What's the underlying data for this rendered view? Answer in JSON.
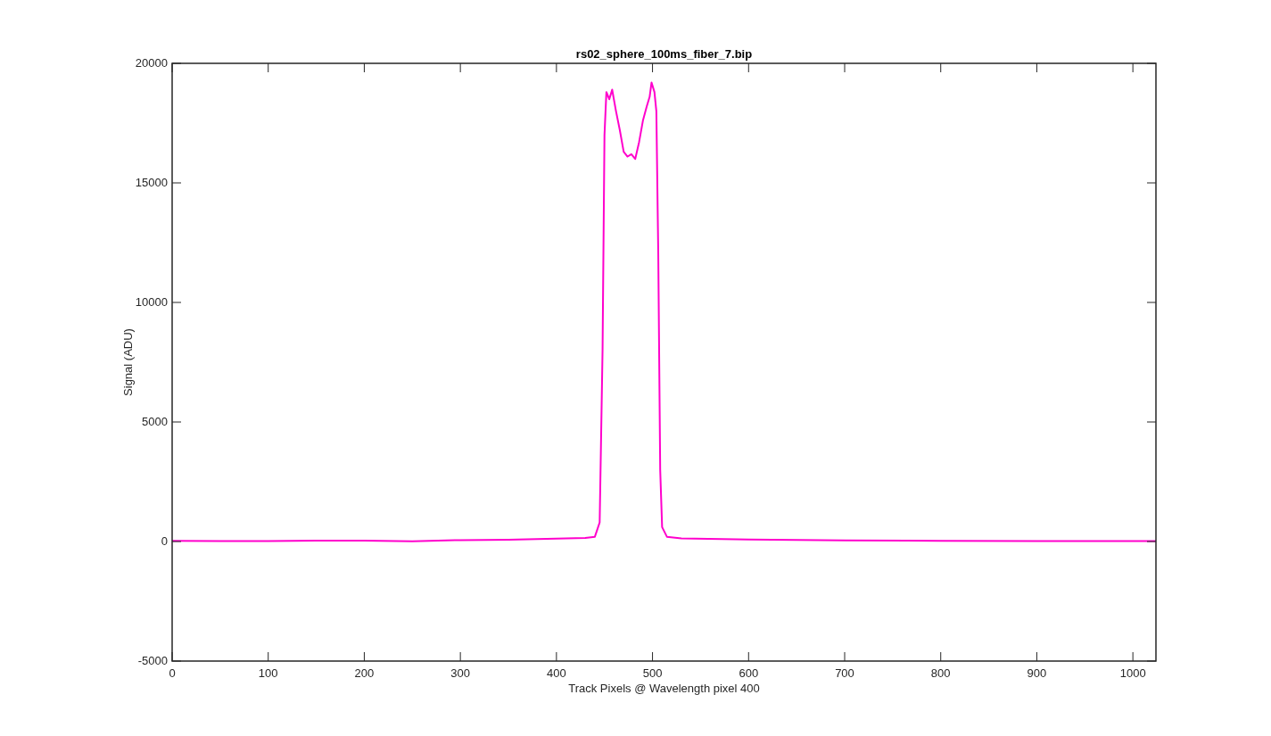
{
  "chart_data": {
    "type": "line",
    "title": "rs02_sphere_100ms_fiber_7.bip",
    "xlabel": "Track Pixels @ Wavelength pixel 400",
    "ylabel": "Signal (ADU)",
    "xlim": [
      0,
      1024
    ],
    "ylim": [
      -5000,
      20000
    ],
    "xticks": [
      0,
      100,
      200,
      300,
      400,
      500,
      600,
      700,
      800,
      900,
      1000
    ],
    "yticks": [
      -5000,
      0,
      5000,
      10000,
      15000,
      20000
    ],
    "x": [
      0,
      50,
      100,
      150,
      200,
      250,
      300,
      350,
      400,
      430,
      440,
      445,
      448,
      450,
      452,
      455,
      458,
      462,
      466,
      470,
      474,
      478,
      482,
      486,
      490,
      494,
      497,
      499,
      502,
      504,
      506,
      508,
      510,
      515,
      530,
      600,
      700,
      800,
      900,
      1024
    ],
    "series": [
      {
        "color": "#ff00cc",
        "values": [
          30,
          20,
          20,
          40,
          40,
          10,
          60,
          70,
          120,
          150,
          200,
          800,
          8000,
          17000,
          18800,
          18500,
          18900,
          18000,
          17200,
          16300,
          16100,
          16200,
          16000,
          16700,
          17600,
          18200,
          18600,
          19200,
          18800,
          18000,
          12000,
          3000,
          600,
          200,
          130,
          80,
          50,
          30,
          20,
          20
        ]
      }
    ]
  }
}
